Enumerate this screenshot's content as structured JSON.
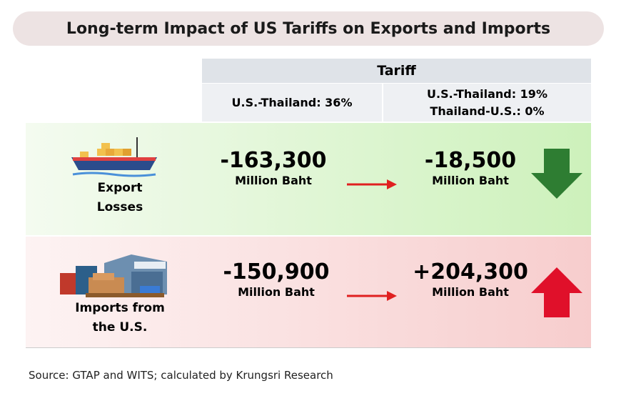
{
  "title": "Long-term Impact of US Tariffs on Exports and Imports",
  "header": {
    "group": "Tariff",
    "columns": [
      [
        "U.S.-Thailand: 36%"
      ],
      [
        "U.S.-Thailand: 19%",
        "Thailand-U.S.: 0%"
      ]
    ]
  },
  "rows": [
    {
      "label": [
        "Export",
        "Losses"
      ],
      "before": {
        "value": "-163,300",
        "unit": "Million Baht"
      },
      "after": {
        "value": "-18,500",
        "unit": "Million Baht"
      }
    },
    {
      "label": [
        "Imports from",
        "the U.S."
      ],
      "before": {
        "value": "-150,900",
        "unit": "Million Baht"
      },
      "after": {
        "value": "+204,300",
        "unit": "Million Baht"
      }
    }
  ],
  "source": "Source: GTAP and WITS; calculated by Krungsri Research"
}
